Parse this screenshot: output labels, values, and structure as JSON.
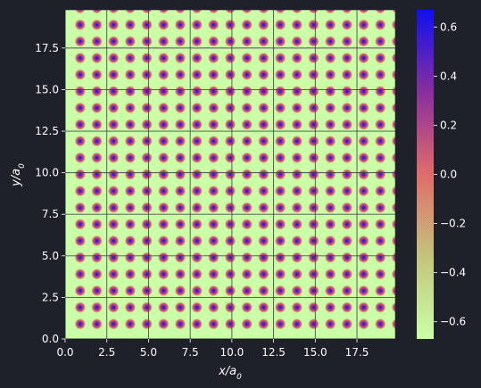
{
  "chart_data": {
    "type": "heatmap",
    "title": "",
    "xlabel": "x/a0",
    "ylabel": "y/a0",
    "xlim": [
      0.0,
      19.8
    ],
    "ylim": [
      0.0,
      19.8
    ],
    "x_ticks": [
      0.0,
      2.5,
      5.0,
      7.5,
      10.0,
      12.5,
      15.0,
      17.5
    ],
    "x_tick_labels": [
      "0.0",
      "2.5",
      "5.0",
      "7.5",
      "10.0",
      "12.5",
      "15.0",
      "17.5"
    ],
    "y_ticks": [
      0.0,
      2.5,
      5.0,
      7.5,
      10.0,
      12.5,
      15.0,
      17.5
    ],
    "y_tick_labels": [
      "0.0",
      "2.5",
      "5.0",
      "7.5",
      "10.0",
      "12.5",
      "15.0",
      "17.5"
    ],
    "grid": true,
    "lattice": {
      "spacing": 1.0,
      "first_x": 0.9,
      "first_y": 0.9,
      "count_x": 20,
      "count_y": 20
    },
    "field_range": [
      -0.67,
      0.67
    ],
    "colorbar": {
      "min": -0.67,
      "max": 0.67,
      "ticks": [
        0.6,
        0.4,
        0.2,
        0.0,
        -0.2,
        -0.4,
        -0.6
      ],
      "tick_labels": [
        "0.6",
        "0.4",
        "0.2",
        "0.0",
        "−0.2",
        "−0.4",
        "−0.6"
      ],
      "colormap_stops": [
        "#caffa8",
        "#c4c47c",
        "#e06c6a",
        "#8a2e9e",
        "#1010f0"
      ],
      "placement": "right"
    }
  }
}
